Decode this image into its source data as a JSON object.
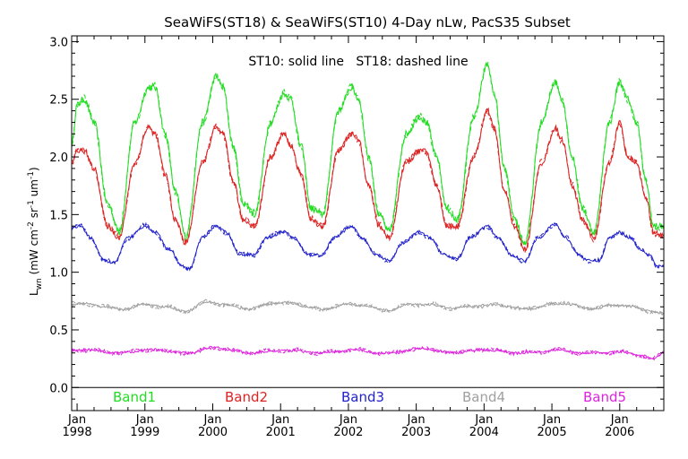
{
  "chart_data": {
    "type": "line",
    "title": "SeaWiFS(ST18) & SeaWiFS(ST10) 4-Day nLw, PacS35 Subset",
    "annotation": "ST10: solid line   ST18: dashed line",
    "ylabel": "L_wn (mW cm^-2 sr^-1 um^-1)",
    "ylabel_main": "L",
    "ylabel_sub": "wn",
    "ylabel_rest": " (mW cm",
    "ylabel_exp1": "-2",
    "ylabel_mid": " sr",
    "ylabel_exp2": "-1",
    "ylabel_mid2": " um",
    "ylabel_exp3": "-1",
    "ylabel_end": ")",
    "ylim": [
      -0.2,
      3.05
    ],
    "yticks": [
      "0.0",
      "0.5",
      "1.0",
      "1.5",
      "2.0",
      "2.5",
      "3.0"
    ],
    "xlim": [
      1997.92,
      2006.65
    ],
    "xticks": [
      {
        "year": 1998,
        "month": "Jan",
        "label": "1998"
      },
      {
        "year": 1999,
        "month": "Jan",
        "label": "1999"
      },
      {
        "year": 2000,
        "month": "Jan",
        "label": "2000"
      },
      {
        "year": 2001,
        "month": "Jan",
        "label": "2001"
      },
      {
        "year": 2002,
        "month": "Jan",
        "label": "2002"
      },
      {
        "year": 2003,
        "month": "Jan",
        "label": "2003"
      },
      {
        "year": 2004,
        "month": "Jan",
        "label": "2004"
      },
      {
        "year": 2005,
        "month": "Jan",
        "label": "2005"
      },
      {
        "year": 2006,
        "month": "Jan",
        "label": "2006"
      }
    ],
    "grid": false,
    "legend_placement": "bottom",
    "series": [
      {
        "name": "Band1",
        "color": "#22dd22",
        "anchors": [
          [
            1997.92,
            2.1
          ],
          [
            1998.0,
            2.45
          ],
          [
            1998.1,
            2.5
          ],
          [
            1998.25,
            2.3
          ],
          [
            1998.45,
            1.6
          ],
          [
            1998.62,
            1.35
          ],
          [
            1998.85,
            2.3
          ],
          [
            1999.05,
            2.6
          ],
          [
            1999.15,
            2.6
          ],
          [
            1999.3,
            2.2
          ],
          [
            1999.45,
            1.7
          ],
          [
            1999.6,
            1.3
          ],
          [
            1999.85,
            2.3
          ],
          [
            2000.05,
            2.7
          ],
          [
            2000.15,
            2.6
          ],
          [
            2000.3,
            2.1
          ],
          [
            2000.45,
            1.6
          ],
          [
            2000.62,
            1.5
          ],
          [
            2000.85,
            2.3
          ],
          [
            2001.05,
            2.55
          ],
          [
            2001.15,
            2.5
          ],
          [
            2001.3,
            2.1
          ],
          [
            2001.45,
            1.55
          ],
          [
            2001.62,
            1.5
          ],
          [
            2001.85,
            2.4
          ],
          [
            2002.05,
            2.6
          ],
          [
            2002.15,
            2.5
          ],
          [
            2002.3,
            2.0
          ],
          [
            2002.45,
            1.5
          ],
          [
            2002.6,
            1.35
          ],
          [
            2002.85,
            2.2
          ],
          [
            2003.05,
            2.35
          ],
          [
            2003.15,
            2.3
          ],
          [
            2003.3,
            2.0
          ],
          [
            2003.45,
            1.55
          ],
          [
            2003.6,
            1.45
          ],
          [
            2003.85,
            2.35
          ],
          [
            2004.05,
            2.8
          ],
          [
            2004.15,
            2.55
          ],
          [
            2004.3,
            1.9
          ],
          [
            2004.45,
            1.45
          ],
          [
            2004.6,
            1.25
          ],
          [
            2004.85,
            2.3
          ],
          [
            2005.05,
            2.65
          ],
          [
            2005.15,
            2.5
          ],
          [
            2005.3,
            2.0
          ],
          [
            2005.45,
            1.55
          ],
          [
            2005.62,
            1.35
          ],
          [
            2005.85,
            2.3
          ],
          [
            2006.0,
            2.65
          ],
          [
            2006.12,
            2.5
          ],
          [
            2006.25,
            2.3
          ],
          [
            2006.38,
            1.8
          ],
          [
            2006.5,
            1.4
          ],
          [
            2006.65,
            1.4
          ]
        ]
      },
      {
        "name": "Band2",
        "color": "#dd2222",
        "anchors": [
          [
            1997.92,
            1.95
          ],
          [
            1998.0,
            2.05
          ],
          [
            1998.1,
            2.05
          ],
          [
            1998.25,
            1.9
          ],
          [
            1998.45,
            1.4
          ],
          [
            1998.62,
            1.3
          ],
          [
            1998.85,
            1.95
          ],
          [
            1999.05,
            2.25
          ],
          [
            1999.15,
            2.2
          ],
          [
            1999.3,
            1.85
          ],
          [
            1999.45,
            1.45
          ],
          [
            1999.6,
            1.25
          ],
          [
            1999.85,
            1.95
          ],
          [
            2000.05,
            2.25
          ],
          [
            2000.15,
            2.2
          ],
          [
            2000.3,
            1.8
          ],
          [
            2000.45,
            1.45
          ],
          [
            2000.62,
            1.4
          ],
          [
            2000.85,
            2.0
          ],
          [
            2001.05,
            2.2
          ],
          [
            2001.15,
            2.1
          ],
          [
            2001.3,
            1.85
          ],
          [
            2001.45,
            1.45
          ],
          [
            2001.62,
            1.4
          ],
          [
            2001.85,
            2.05
          ],
          [
            2002.05,
            2.2
          ],
          [
            2002.15,
            2.15
          ],
          [
            2002.3,
            1.75
          ],
          [
            2002.45,
            1.4
          ],
          [
            2002.6,
            1.3
          ],
          [
            2002.85,
            1.95
          ],
          [
            2003.05,
            2.05
          ],
          [
            2003.15,
            2.05
          ],
          [
            2003.3,
            1.75
          ],
          [
            2003.45,
            1.4
          ],
          [
            2003.6,
            1.4
          ],
          [
            2003.85,
            2.0
          ],
          [
            2004.05,
            2.4
          ],
          [
            2004.15,
            2.25
          ],
          [
            2004.3,
            1.7
          ],
          [
            2004.45,
            1.4
          ],
          [
            2004.6,
            1.2
          ],
          [
            2004.85,
            1.95
          ],
          [
            2005.05,
            2.25
          ],
          [
            2005.15,
            2.15
          ],
          [
            2005.3,
            1.75
          ],
          [
            2005.45,
            1.45
          ],
          [
            2005.62,
            1.3
          ],
          [
            2005.85,
            1.95
          ],
          [
            2006.0,
            2.3
          ],
          [
            2006.12,
            2.0
          ],
          [
            2006.25,
            1.95
          ],
          [
            2006.38,
            1.65
          ],
          [
            2006.5,
            1.35
          ],
          [
            2006.65,
            1.32
          ]
        ]
      },
      {
        "name": "Band3",
        "color": "#2222cc",
        "anchors": [
          [
            1997.92,
            1.38
          ],
          [
            1998.05,
            1.4
          ],
          [
            1998.2,
            1.3
          ],
          [
            1998.4,
            1.1
          ],
          [
            1998.55,
            1.08
          ],
          [
            1998.75,
            1.3
          ],
          [
            1999.0,
            1.4
          ],
          [
            1999.15,
            1.35
          ],
          [
            1999.35,
            1.2
          ],
          [
            1999.55,
            1.05
          ],
          [
            1999.65,
            1.03
          ],
          [
            1999.85,
            1.3
          ],
          [
            2000.05,
            1.4
          ],
          [
            2000.2,
            1.35
          ],
          [
            2000.4,
            1.15
          ],
          [
            2000.6,
            1.15
          ],
          [
            2000.8,
            1.3
          ],
          [
            2001.05,
            1.35
          ],
          [
            2001.2,
            1.3
          ],
          [
            2001.4,
            1.15
          ],
          [
            2001.6,
            1.15
          ],
          [
            2001.8,
            1.3
          ],
          [
            2002.05,
            1.4
          ],
          [
            2002.2,
            1.3
          ],
          [
            2002.4,
            1.15
          ],
          [
            2002.6,
            1.1
          ],
          [
            2002.8,
            1.25
          ],
          [
            2003.05,
            1.35
          ],
          [
            2003.2,
            1.3
          ],
          [
            2003.4,
            1.15
          ],
          [
            2003.6,
            1.12
          ],
          [
            2003.8,
            1.3
          ],
          [
            2004.05,
            1.4
          ],
          [
            2004.2,
            1.3
          ],
          [
            2004.4,
            1.15
          ],
          [
            2004.6,
            1.1
          ],
          [
            2004.8,
            1.3
          ],
          [
            2005.05,
            1.42
          ],
          [
            2005.2,
            1.3
          ],
          [
            2005.4,
            1.15
          ],
          [
            2005.55,
            1.1
          ],
          [
            2005.7,
            1.1
          ],
          [
            2005.85,
            1.3
          ],
          [
            2006.0,
            1.35
          ],
          [
            2006.15,
            1.3
          ],
          [
            2006.3,
            1.2
          ],
          [
            2006.45,
            1.15
          ],
          [
            2006.55,
            1.05
          ],
          [
            2006.65,
            1.05
          ]
        ]
      },
      {
        "name": "Band4",
        "color": "#a0a0a0",
        "anchors": [
          [
            1997.92,
            0.72
          ],
          [
            1998.1,
            0.73
          ],
          [
            1998.4,
            0.7
          ],
          [
            1998.7,
            0.68
          ],
          [
            1999.0,
            0.72
          ],
          [
            1999.3,
            0.7
          ],
          [
            1999.6,
            0.66
          ],
          [
            1999.9,
            0.74
          ],
          [
            2000.2,
            0.72
          ],
          [
            2000.5,
            0.68
          ],
          [
            2000.8,
            0.72
          ],
          [
            2001.1,
            0.74
          ],
          [
            2001.4,
            0.7
          ],
          [
            2001.7,
            0.68
          ],
          [
            2002.0,
            0.73
          ],
          [
            2002.3,
            0.7
          ],
          [
            2002.6,
            0.67
          ],
          [
            2002.9,
            0.72
          ],
          [
            2003.2,
            0.72
          ],
          [
            2003.5,
            0.69
          ],
          [
            2003.8,
            0.7
          ],
          [
            2004.1,
            0.72
          ],
          [
            2004.4,
            0.7
          ],
          [
            2004.7,
            0.68
          ],
          [
            2005.0,
            0.73
          ],
          [
            2005.3,
            0.72
          ],
          [
            2005.6,
            0.68
          ],
          [
            2005.9,
            0.72
          ],
          [
            2006.2,
            0.7
          ],
          [
            2006.45,
            0.66
          ],
          [
            2006.65,
            0.64
          ]
        ]
      },
      {
        "name": "Band5",
        "color": "#dd22dd",
        "anchors": [
          [
            1997.92,
            0.32
          ],
          [
            1998.2,
            0.33
          ],
          [
            1998.5,
            0.3
          ],
          [
            1998.8,
            0.31
          ],
          [
            1999.1,
            0.33
          ],
          [
            1999.4,
            0.31
          ],
          [
            1999.7,
            0.3
          ],
          [
            2000.0,
            0.35
          ],
          [
            2000.3,
            0.32
          ],
          [
            2000.6,
            0.3
          ],
          [
            2000.9,
            0.32
          ],
          [
            2001.2,
            0.32
          ],
          [
            2001.5,
            0.3
          ],
          [
            2001.8,
            0.31
          ],
          [
            2002.1,
            0.33
          ],
          [
            2002.4,
            0.3
          ],
          [
            2002.7,
            0.3
          ],
          [
            2003.0,
            0.34
          ],
          [
            2003.3,
            0.32
          ],
          [
            2003.6,
            0.3
          ],
          [
            2003.9,
            0.33
          ],
          [
            2004.2,
            0.32
          ],
          [
            2004.5,
            0.3
          ],
          [
            2004.8,
            0.31
          ],
          [
            2005.1,
            0.33
          ],
          [
            2005.4,
            0.3
          ],
          [
            2005.7,
            0.3
          ],
          [
            2006.0,
            0.31
          ],
          [
            2006.3,
            0.28
          ],
          [
            2006.5,
            0.25
          ],
          [
            2006.65,
            0.3
          ]
        ]
      }
    ]
  }
}
